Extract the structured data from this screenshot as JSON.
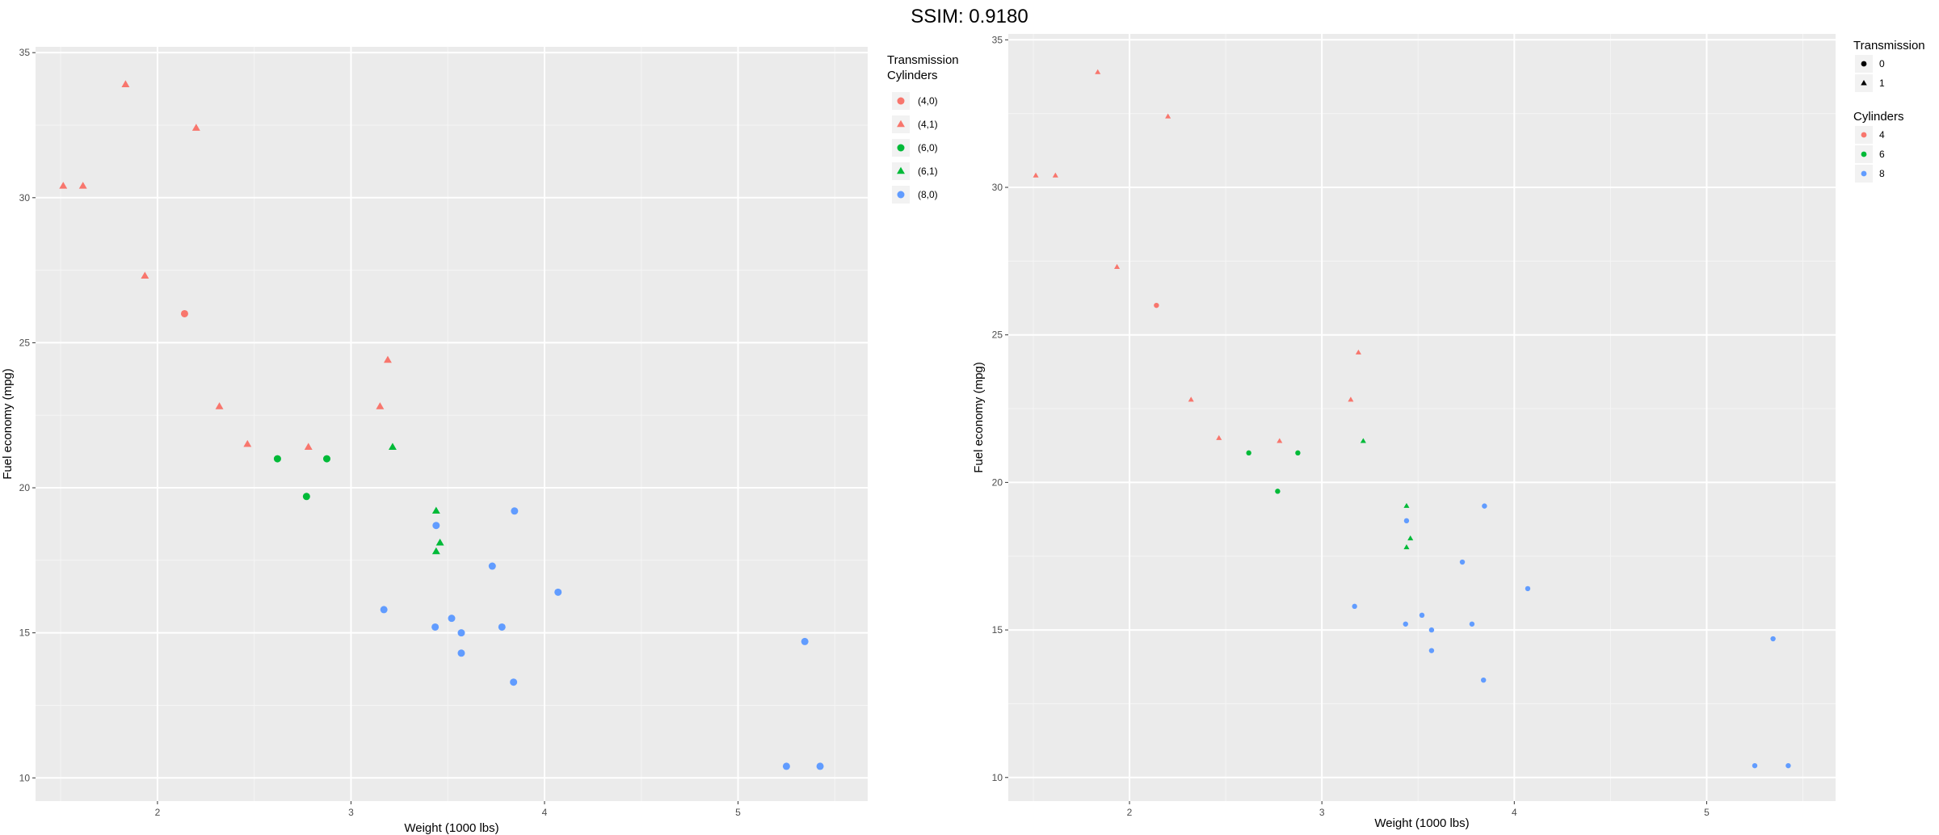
{
  "figure_title": "SSIM: 0.9180",
  "chart_data": [
    {
      "type": "scatter",
      "xlabel": "Weight (1000 lbs)",
      "ylabel": "Fuel economy (mpg)",
      "xlim": [
        1.37,
        5.67
      ],
      "ylim": [
        9.2,
        35.2
      ],
      "x_ticks": [
        2,
        3,
        4,
        5
      ],
      "y_ticks": [
        10,
        15,
        20,
        25,
        30,
        35
      ],
      "grid": true,
      "legend_placement": "right",
      "legend": {
        "titles": [
          "Transmission",
          "Cylinders"
        ],
        "entries": [
          {
            "label": "(4,0)",
            "shape": "circle",
            "color": "#F8766D"
          },
          {
            "label": "(4,1)",
            "shape": "triangle",
            "color": "#F8766D"
          },
          {
            "label": "(6,0)",
            "shape": "circle",
            "color": "#00BA38"
          },
          {
            "label": "(6,1)",
            "shape": "triangle",
            "color": "#00BA38"
          },
          {
            "label": "(8,0)",
            "shape": "circle",
            "color": "#619CFF"
          }
        ]
      },
      "point_size": "large",
      "points": [
        {
          "x": 1.513,
          "y": 30.4,
          "shape": "triangle",
          "color": "#F8766D"
        },
        {
          "x": 1.615,
          "y": 30.4,
          "shape": "triangle",
          "color": "#F8766D"
        },
        {
          "x": 1.835,
          "y": 33.9,
          "shape": "triangle",
          "color": "#F8766D"
        },
        {
          "x": 1.935,
          "y": 27.3,
          "shape": "triangle",
          "color": "#F8766D"
        },
        {
          "x": 2.2,
          "y": 32.4,
          "shape": "triangle",
          "color": "#F8766D"
        },
        {
          "x": 2.14,
          "y": 26.0,
          "shape": "circle",
          "color": "#F8766D"
        },
        {
          "x": 2.32,
          "y": 22.8,
          "shape": "triangle",
          "color": "#F8766D"
        },
        {
          "x": 2.465,
          "y": 21.5,
          "shape": "triangle",
          "color": "#F8766D"
        },
        {
          "x": 2.78,
          "y": 21.4,
          "shape": "triangle",
          "color": "#F8766D"
        },
        {
          "x": 3.15,
          "y": 22.8,
          "shape": "triangle",
          "color": "#F8766D"
        },
        {
          "x": 3.19,
          "y": 24.4,
          "shape": "triangle",
          "color": "#F8766D"
        },
        {
          "x": 2.62,
          "y": 21.0,
          "shape": "circle",
          "color": "#00BA38"
        },
        {
          "x": 2.875,
          "y": 21.0,
          "shape": "circle",
          "color": "#00BA38"
        },
        {
          "x": 2.77,
          "y": 19.7,
          "shape": "circle",
          "color": "#00BA38"
        },
        {
          "x": 3.215,
          "y": 21.4,
          "shape": "triangle",
          "color": "#00BA38"
        },
        {
          "x": 3.44,
          "y": 19.2,
          "shape": "triangle",
          "color": "#00BA38"
        },
        {
          "x": 3.46,
          "y": 18.1,
          "shape": "triangle",
          "color": "#00BA38"
        },
        {
          "x": 3.44,
          "y": 17.8,
          "shape": "triangle",
          "color": "#00BA38"
        },
        {
          "x": 3.44,
          "y": 18.7,
          "shape": "circle",
          "color": "#619CFF"
        },
        {
          "x": 3.845,
          "y": 19.2,
          "shape": "circle",
          "color": "#619CFF"
        },
        {
          "x": 3.73,
          "y": 17.3,
          "shape": "circle",
          "color": "#619CFF"
        },
        {
          "x": 4.07,
          "y": 16.4,
          "shape": "circle",
          "color": "#619CFF"
        },
        {
          "x": 3.17,
          "y": 15.8,
          "shape": "circle",
          "color": "#619CFF"
        },
        {
          "x": 3.435,
          "y": 15.2,
          "shape": "circle",
          "color": "#619CFF"
        },
        {
          "x": 3.52,
          "y": 15.5,
          "shape": "circle",
          "color": "#619CFF"
        },
        {
          "x": 3.57,
          "y": 15.0,
          "shape": "circle",
          "color": "#619CFF"
        },
        {
          "x": 3.78,
          "y": 15.2,
          "shape": "circle",
          "color": "#619CFF"
        },
        {
          "x": 3.57,
          "y": 14.3,
          "shape": "circle",
          "color": "#619CFF"
        },
        {
          "x": 3.84,
          "y": 13.3,
          "shape": "circle",
          "color": "#619CFF"
        },
        {
          "x": 5.345,
          "y": 14.7,
          "shape": "circle",
          "color": "#619CFF"
        },
        {
          "x": 5.25,
          "y": 10.4,
          "shape": "circle",
          "color": "#619CFF"
        },
        {
          "x": 5.424,
          "y": 10.4,
          "shape": "circle",
          "color": "#619CFF"
        }
      ]
    },
    {
      "type": "scatter",
      "xlabel": "Weight (1000 lbs)",
      "ylabel": "Fuel economy (mpg)",
      "xlim": [
        1.37,
        5.67
      ],
      "ylim": [
        9.2,
        35.2
      ],
      "x_ticks": [
        2,
        3,
        4,
        5
      ],
      "y_ticks": [
        10,
        15,
        20,
        25,
        30,
        35
      ],
      "grid": true,
      "legend_placement": "right",
      "legend_groups": [
        {
          "title": "Transmission",
          "entries": [
            {
              "label": "0",
              "shape": "circle",
              "color": "#000000"
            },
            {
              "label": "1",
              "shape": "triangle",
              "color": "#000000"
            }
          ]
        },
        {
          "title": "Cylinders",
          "entries": [
            {
              "label": "4",
              "shape": "circle",
              "color": "#F8766D"
            },
            {
              "label": "6",
              "shape": "circle",
              "color": "#00BA38"
            },
            {
              "label": "8",
              "shape": "circle",
              "color": "#619CFF"
            }
          ]
        }
      ],
      "point_size": "small",
      "points": [
        {
          "x": 1.513,
          "y": 30.4,
          "shape": "triangle",
          "color": "#F8766D"
        },
        {
          "x": 1.615,
          "y": 30.4,
          "shape": "triangle",
          "color": "#F8766D"
        },
        {
          "x": 1.835,
          "y": 33.9,
          "shape": "triangle",
          "color": "#F8766D"
        },
        {
          "x": 1.935,
          "y": 27.3,
          "shape": "triangle",
          "color": "#F8766D"
        },
        {
          "x": 2.2,
          "y": 32.4,
          "shape": "triangle",
          "color": "#F8766D"
        },
        {
          "x": 2.14,
          "y": 26.0,
          "shape": "circle",
          "color": "#F8766D"
        },
        {
          "x": 2.32,
          "y": 22.8,
          "shape": "triangle",
          "color": "#F8766D"
        },
        {
          "x": 2.465,
          "y": 21.5,
          "shape": "triangle",
          "color": "#F8766D"
        },
        {
          "x": 2.78,
          "y": 21.4,
          "shape": "triangle",
          "color": "#F8766D"
        },
        {
          "x": 3.15,
          "y": 22.8,
          "shape": "triangle",
          "color": "#F8766D"
        },
        {
          "x": 3.19,
          "y": 24.4,
          "shape": "triangle",
          "color": "#F8766D"
        },
        {
          "x": 2.62,
          "y": 21.0,
          "shape": "circle",
          "color": "#00BA38"
        },
        {
          "x": 2.875,
          "y": 21.0,
          "shape": "circle",
          "color": "#00BA38"
        },
        {
          "x": 2.77,
          "y": 19.7,
          "shape": "circle",
          "color": "#00BA38"
        },
        {
          "x": 3.215,
          "y": 21.4,
          "shape": "triangle",
          "color": "#00BA38"
        },
        {
          "x": 3.44,
          "y": 19.2,
          "shape": "triangle",
          "color": "#00BA38"
        },
        {
          "x": 3.46,
          "y": 18.1,
          "shape": "triangle",
          "color": "#00BA38"
        },
        {
          "x": 3.44,
          "y": 17.8,
          "shape": "triangle",
          "color": "#00BA38"
        },
        {
          "x": 3.44,
          "y": 18.7,
          "shape": "circle",
          "color": "#619CFF"
        },
        {
          "x": 3.845,
          "y": 19.2,
          "shape": "circle",
          "color": "#619CFF"
        },
        {
          "x": 3.73,
          "y": 17.3,
          "shape": "circle",
          "color": "#619CFF"
        },
        {
          "x": 4.07,
          "y": 16.4,
          "shape": "circle",
          "color": "#619CFF"
        },
        {
          "x": 3.17,
          "y": 15.8,
          "shape": "circle",
          "color": "#619CFF"
        },
        {
          "x": 3.435,
          "y": 15.2,
          "shape": "circle",
          "color": "#619CFF"
        },
        {
          "x": 3.52,
          "y": 15.5,
          "shape": "circle",
          "color": "#619CFF"
        },
        {
          "x": 3.57,
          "y": 15.0,
          "shape": "circle",
          "color": "#619CFF"
        },
        {
          "x": 3.78,
          "y": 15.2,
          "shape": "circle",
          "color": "#619CFF"
        },
        {
          "x": 3.57,
          "y": 14.3,
          "shape": "circle",
          "color": "#619CFF"
        },
        {
          "x": 3.84,
          "y": 13.3,
          "shape": "circle",
          "color": "#619CFF"
        },
        {
          "x": 5.345,
          "y": 14.7,
          "shape": "circle",
          "color": "#619CFF"
        },
        {
          "x": 5.25,
          "y": 10.4,
          "shape": "circle",
          "color": "#619CFF"
        },
        {
          "x": 5.424,
          "y": 10.4,
          "shape": "circle",
          "color": "#619CFF"
        }
      ]
    }
  ]
}
